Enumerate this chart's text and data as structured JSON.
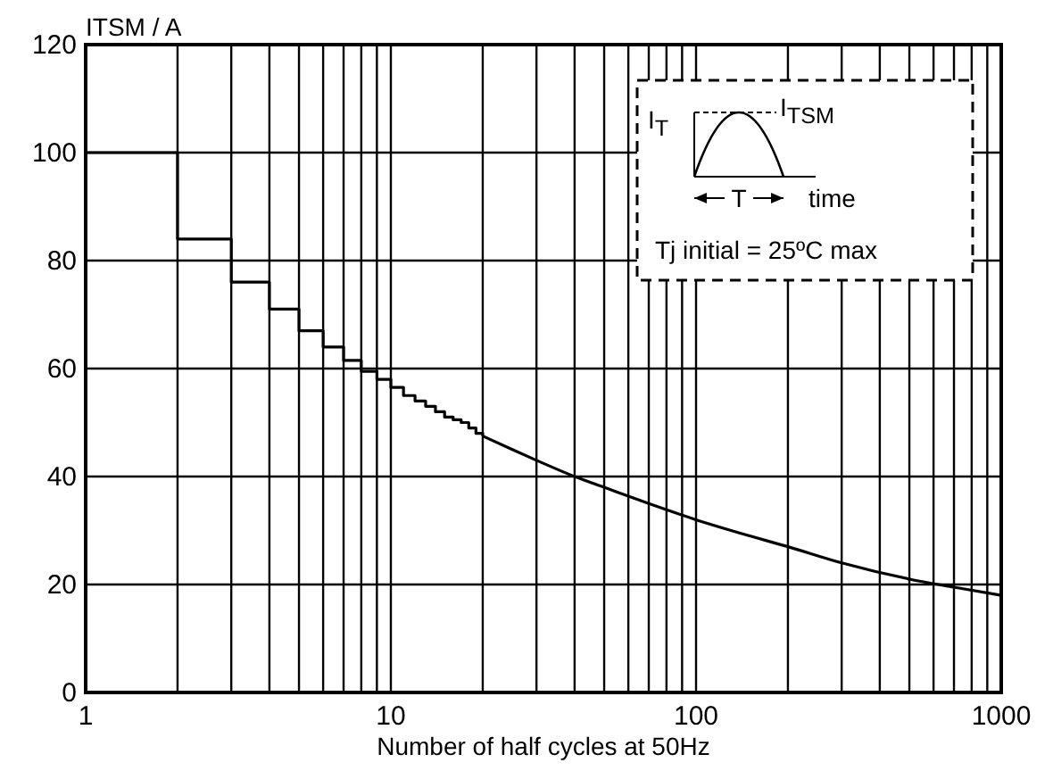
{
  "chart_data": {
    "type": "step",
    "ylabel": "ITSM / A",
    "xlabel": "Number of half cycles at 50Hz",
    "log": "x",
    "grid": true,
    "xlim": [
      1,
      1000
    ],
    "ylim": [
      0,
      120
    ],
    "xticks": [
      1,
      {
        "value": 2,
        "label": null
      },
      {
        "value": 3,
        "label": null
      },
      {
        "value": 4,
        "label": null
      },
      {
        "value": 5,
        "label": null
      },
      {
        "value": 6,
        "label": null
      },
      {
        "value": 7,
        "label": null
      },
      {
        "value": 8,
        "label": null
      },
      {
        "value": 9,
        "label": null
      },
      10,
      {
        "value": 20,
        "label": null
      },
      {
        "value": 30,
        "label": null
      },
      {
        "value": 40,
        "label": null
      },
      {
        "value": 50,
        "label": null
      },
      {
        "value": 60,
        "label": null
      },
      {
        "value": 70,
        "label": null
      },
      {
        "value": 80,
        "label": null
      },
      {
        "value": 90,
        "label": null
      },
      100,
      {
        "value": 200,
        "label": null
      },
      {
        "value": 300,
        "label": null
      },
      {
        "value": 400,
        "label": null
      },
      {
        "value": 500,
        "label": null
      },
      {
        "value": 600,
        "label": null
      },
      {
        "value": 700,
        "label": null
      },
      {
        "value": 800,
        "label": null
      },
      {
        "value": 900,
        "label": null
      },
      1000
    ],
    "yticks": [
      0,
      20,
      40,
      60,
      80,
      100,
      120
    ],
    "series": [
      {
        "type": "step",
        "color": "#000000",
        "x": [
          1,
          2,
          3,
          4,
          5,
          6,
          7,
          8,
          9,
          10,
          11,
          12,
          13,
          14,
          15,
          16,
          17,
          18,
          19,
          20
        ],
        "values": [
          100,
          84,
          76,
          71,
          67,
          64,
          61.5,
          59.5,
          58,
          56.5,
          55,
          54,
          53,
          52,
          51,
          50.5,
          50,
          49,
          48,
          47.5
        ]
      },
      {
        "type": "line",
        "color": "#000000",
        "x": [
          20,
          25,
          30,
          40,
          50,
          70,
          100,
          150,
          200,
          300,
          500,
          700,
          1000
        ],
        "values": [
          47.5,
          45,
          43,
          40,
          38,
          35,
          32,
          29,
          27,
          24,
          21,
          19.5,
          18
        ]
      }
    ],
    "annotations": [
      "I$_{T}$",
      "I$_{TSM}$",
      "T",
      "time",
      "Tj initial = 25ºC max"
    ]
  }
}
